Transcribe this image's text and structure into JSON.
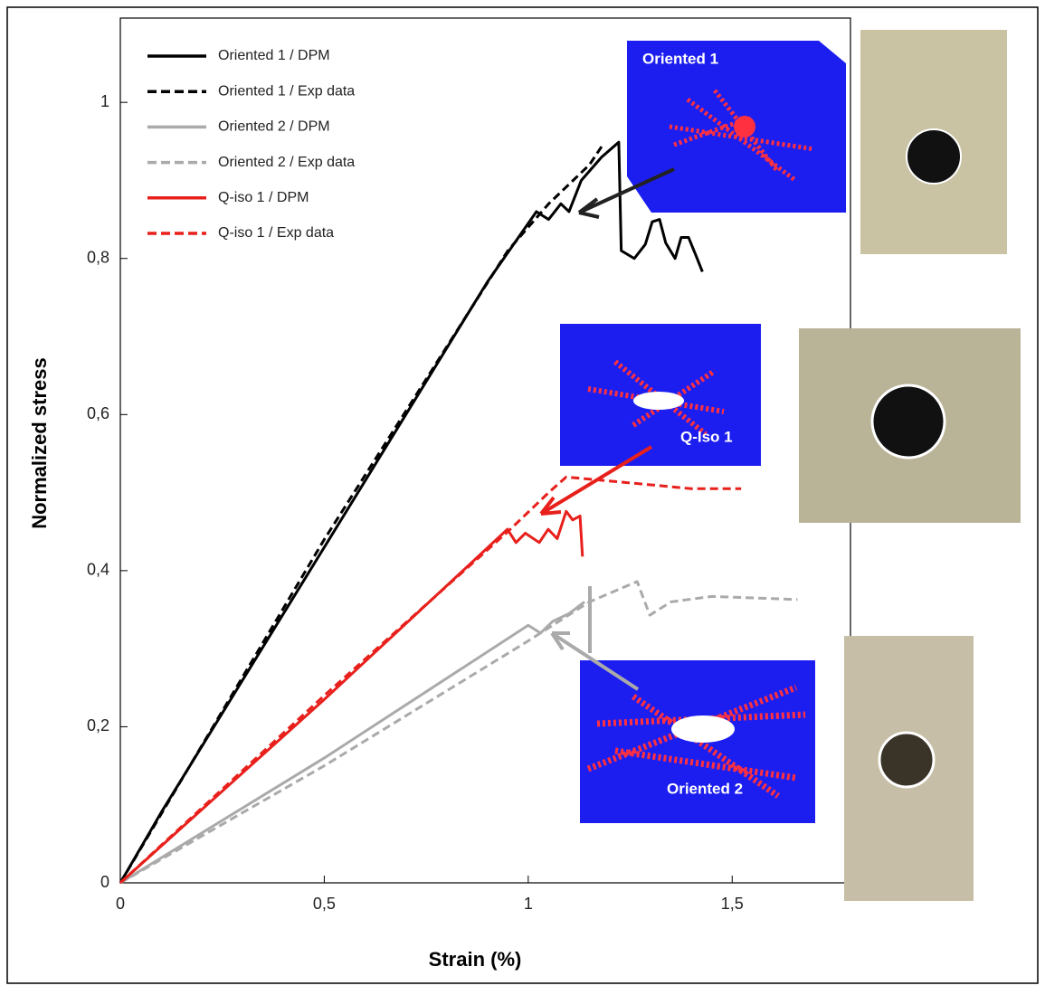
{
  "chart_data": {
    "type": "line",
    "xlabel": "Strain (%)",
    "ylabel": "Normalized stress",
    "xlim": [
      0,
      1.79
    ],
    "ylim": [
      0,
      1.108
    ],
    "xticks": [
      0,
      {
        "value": 0.5,
        "label": "0,5"
      },
      1,
      {
        "value": 1.5,
        "label": "1,5"
      }
    ],
    "yticks": [
      0,
      {
        "value": 0.2,
        "label": "0,2"
      },
      {
        "value": 0.4,
        "label": "0,4"
      },
      {
        "value": 0.6,
        "label": "0,6"
      },
      {
        "value": 0.8,
        "label": "0,8"
      },
      1
    ],
    "legend": "upper left",
    "annotations": [
      "Oriented 1",
      "Q-Iso 1",
      "Oriented 2"
    ],
    "series": [
      {
        "name": "Oriented 1 / DPM",
        "color": "#000000",
        "linestyle": "solid",
        "x": [
          0,
          0.1,
          0.5,
          0.9,
          1.02,
          1.05,
          1.08,
          1.1,
          1.13,
          1.18,
          1.222,
          1.228,
          1.26,
          1.287,
          1.304,
          1.322,
          1.337,
          1.36,
          1.375,
          1.393,
          1.411,
          1.427
        ],
        "values": [
          0,
          0.09,
          0.43,
          0.77,
          0.86,
          0.85,
          0.87,
          0.86,
          0.9,
          0.93,
          0.949,
          0.81,
          0.8,
          0.818,
          0.847,
          0.85,
          0.82,
          0.8,
          0.827,
          0.827,
          0.804,
          0.783
        ]
      },
      {
        "name": "Oriented 1 / Exp data",
        "color": "#000000",
        "linestyle": "dashed",
        "x": [
          0,
          0.5,
          0.95,
          1.05,
          1.15,
          1.182
        ],
        "values": [
          0,
          0.44,
          0.81,
          0.87,
          0.92,
          0.945
        ]
      },
      {
        "name": "Oriented 2 / DPM",
        "color": "#aaaaaa",
        "linestyle": "solid",
        "x": [
          0,
          0.5,
          1.0,
          1.03,
          1.06,
          1.1,
          1.138
        ],
        "values": [
          0,
          0.16,
          0.33,
          0.32,
          0.335,
          0.345,
          0.36
        ]
      },
      {
        "name": "Oriented 2 / Exp data",
        "color": "#aaaaaa",
        "linestyle": "dashed",
        "x": [
          0,
          0.5,
          1.0,
          1.15,
          1.267,
          1.298,
          1.35,
          1.45,
          1.66
        ],
        "values": [
          0,
          0.15,
          0.31,
          0.36,
          0.386,
          0.343,
          0.36,
          0.367,
          0.363
        ]
      },
      {
        "name": "Q-iso 1 / DPM",
        "color": "#e8201c",
        "linestyle": "solid",
        "x": [
          0,
          0.5,
          0.949,
          0.97,
          0.993,
          1.027,
          1.049,
          1.071,
          1.093,
          1.109,
          1.127,
          1.133
        ],
        "values": [
          0,
          0.235,
          0.453,
          0.436,
          0.448,
          0.436,
          0.453,
          0.441,
          0.476,
          0.465,
          0.47,
          0.418
        ]
      },
      {
        "name": "Q-iso 1 / Exp data",
        "color": "#e8201c",
        "linestyle": "dashed",
        "x": [
          0,
          0.5,
          0.95,
          1.05,
          1.093,
          1.3,
          1.4,
          1.522
        ],
        "values": [
          0,
          0.24,
          0.45,
          0.5,
          0.52,
          0.51,
          0.505,
          0.505
        ]
      }
    ]
  }
}
